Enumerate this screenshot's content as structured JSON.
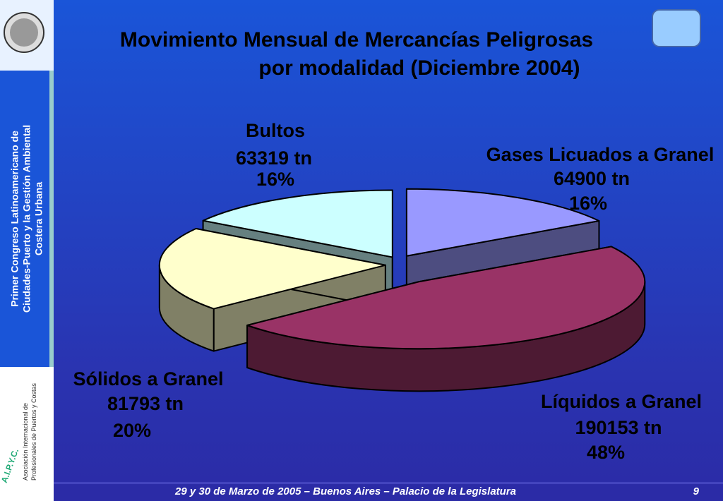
{
  "sidebar": {
    "lines": [
      "Primer Congreso Latinoamericano de",
      "Ciudades-Puerto y la Gestión Ambiental",
      "Costera Urbana"
    ]
  },
  "logo": {
    "lines": [
      "Asociación Internacional de",
      "Profesionales de Puertos y Costas"
    ],
    "acronym": "A.I.P.Y.C."
  },
  "footer": {
    "text": "29 y 30 de Marzo de 2005 – Buenos Aires – Palacio de la Legislatura",
    "page": "9"
  },
  "chart_data": {
    "type": "pie",
    "title": [
      "Movimiento Mensual de Mercancías Peligrosas",
      "por modalidad (Diciembre 2004)"
    ],
    "categories": [
      "Gases Licuados a Granel",
      "Líquidos a Granel",
      "Sólidos a Granel",
      "Bultos"
    ],
    "values": [
      64900,
      190153,
      81793,
      63319
    ],
    "value_labels": [
      "64900 tn",
      "190153 tn",
      "81793 tn",
      "63319 tn"
    ],
    "percentages": [
      16,
      48,
      20,
      16
    ],
    "percentage_labels": [
      "16%",
      "48%",
      "20%",
      "16%"
    ],
    "colors": [
      "#9999ff",
      "#993366",
      "#ffffcc",
      "#ccffff"
    ],
    "side_colors": [
      "#4d4d80",
      "#4d1a33",
      "#808066",
      "#668080"
    ]
  }
}
